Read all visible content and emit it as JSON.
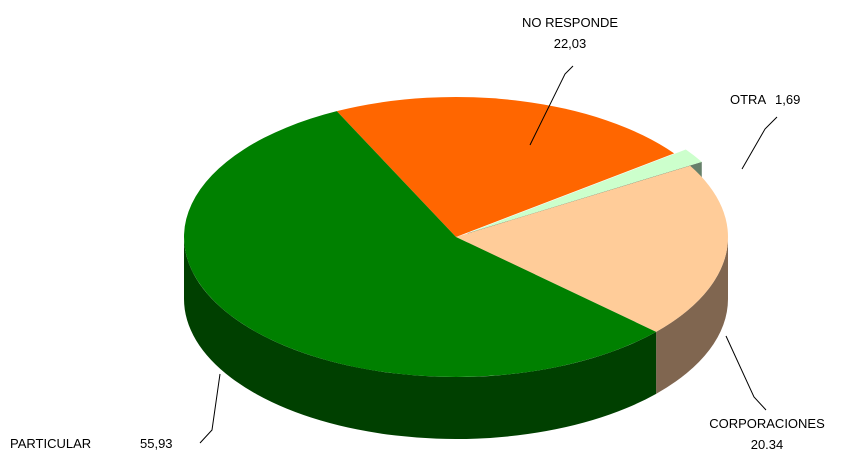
{
  "chart_data": {
    "type": "pie",
    "style": "3d",
    "title": "",
    "slices": [
      {
        "label": "NO RESPONDE",
        "value_text": "22,03",
        "value": 22.03,
        "top_color": "#ff6600",
        "side_color": "#a33d00"
      },
      {
        "label": "OTRA",
        "value_text": "1,69",
        "value": 1.69,
        "top_color": "#ccffcc",
        "side_color": "#66806a"
      },
      {
        "label": "CORPORACIONES",
        "value_text": "20.34",
        "value": 20.34,
        "top_color": "#ffcc99",
        "side_color": "#806650"
      },
      {
        "label": "PARTICULAR",
        "value_text": "55,93",
        "value": 55.93,
        "top_color": "#008000",
        "side_color": "#004000"
      }
    ]
  }
}
